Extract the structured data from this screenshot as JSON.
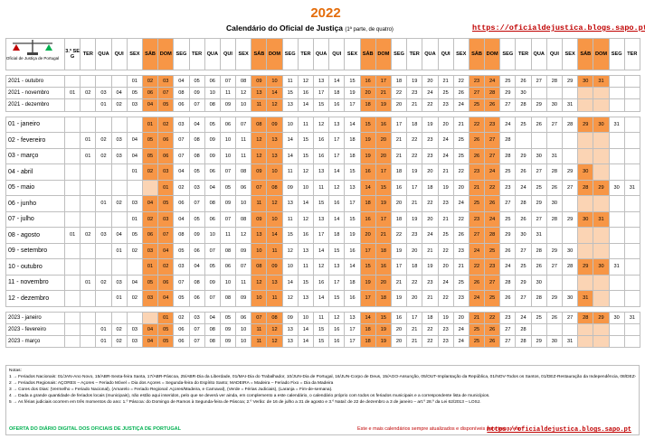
{
  "header": {
    "year": "2022",
    "subtitle": "Calendário do Oficial de Justiça",
    "subtitle_small": "(1ª parte, de quatro)",
    "url": "https://oficialdejustica.blogs.sapo.pt"
  },
  "logo": {
    "label": "Oficial de Justiça de Portugal"
  },
  "weekday_headers": [
    "3.ª SEG",
    "TER",
    "QUA",
    "QUI",
    "SEX",
    "SÁB",
    "DOM",
    "SEG",
    "TER",
    "QUA",
    "QUI",
    "SEX",
    "SÁB",
    "DOM",
    "SEG",
    "TER",
    "QUA",
    "QUI",
    "SEX",
    "SÁB",
    "DOM",
    "SEG",
    "TER",
    "QUA",
    "QUI",
    "SEX",
    "SÁB",
    "DOM",
    "SEG",
    "TER",
    "QUA",
    "QUI",
    "SEX",
    "SÁB",
    "DOM",
    "SEG",
    "TER"
  ],
  "months": [
    {
      "label": "2021 - outubro",
      "start": 4,
      "days": 31,
      "big": false
    },
    {
      "label": "2021 - novembro",
      "start": 0,
      "days": 30,
      "big": false
    },
    {
      "label": "2021 - dezembro",
      "start": 2,
      "days": 31,
      "big": false
    },
    {
      "label": "01 - janeiro",
      "start": 5,
      "days": 31,
      "big": true
    },
    {
      "label": "02 - fevereiro",
      "start": 1,
      "days": 28,
      "big": true
    },
    {
      "label": "03 - março",
      "start": 1,
      "days": 31,
      "big": true
    },
    {
      "label": "04 - abril",
      "start": 4,
      "days": 30,
      "big": true
    },
    {
      "label": "05 - maio",
      "start": 6,
      "days": 31,
      "big": true
    },
    {
      "label": "06 - junho",
      "start": 2,
      "days": 30,
      "big": true
    },
    {
      "label": "07 - julho",
      "start": 4,
      "days": 31,
      "big": true
    },
    {
      "label": "08 - agosto",
      "start": 0,
      "days": 31,
      "big": true
    },
    {
      "label": "09 - setembro",
      "start": 3,
      "days": 30,
      "big": true
    },
    {
      "label": "10 - outubro",
      "start": 5,
      "days": 31,
      "big": true
    },
    {
      "label": "11 - novembro",
      "start": 1,
      "days": 30,
      "big": true
    },
    {
      "label": "12 - dezembro",
      "start": 3,
      "days": 31,
      "big": true
    },
    {
      "label": "2023 - janeiro",
      "start": 6,
      "days": 31,
      "big": false
    },
    {
      "label": "2023 - fevereiro",
      "start": 2,
      "days": 28,
      "big": false
    },
    {
      "label": "2023 - março",
      "start": 2,
      "days": 31,
      "big": false
    }
  ],
  "notes": {
    "title": "Notas:",
    "line1": "1 → Feriados Nacionais: 01/JAN-Ano Novo, 15/ABR-Sexta-feira Santa, 17/ABR-Páscoa, 25/ABR-Dia da Liberdade, 01/MAI-Dia do Trabalhador, 10/JUN-Dia de Portugal, 16/JUN-Corpo de Deus, 15/AGO-Assunção, 05/OUT-Implantação da República, 01/NOV-Todos os Santos, 01/DEZ-Restauração da Independência, 08/DEZ-Imaculada Conceição, 25/DEZ-Natal.",
    "line2": "2 → Feriados Regionais: AÇORES – Açores – Feriado Móvel = Dia dos Açores = Segunda-feira do Espírito Santo; MADEIRA = Madeira – Feriado Fixo = Dia da Madeira",
    "line3": "3 → Cores dos Dias: (Vermelho = Feriado Nacional), (Amarelo = Feriado Regional: Açores/Madeira, e Carnaval), (Verde = Férias Judiciais), (Laranja = Fim-de-semana).",
    "line4": "4 → Dada a grande quantidade de feriados locais (municipais), não estão aqui inseridos, pelo que se deverá ver ainda, em complemento a este calendário, o calendário próprio com todos os feriados municipais e a correspondente lista de municípios.",
    "line5": "5 → As férias judiciais ocorrem em três momentos do ano: 1.º Páscoa: do Domingo de Ramos à Segunda-feira de Páscoa; 2.º Verão: de 16 de julho a 31 de agosto e 3.º Natal: de 22 de dezembro a 3 de janeiro – art.º 28.º da Lei 62/2013 – LOSJ.",
    "footer_left": "OFERTA DO DIÁRIO DIGITAL DOS OFICIAIS DE JUSTIÇA DE PORTUGAL",
    "footer_right": "Este e mais calendários sempre atualizados e disponíveis para baixar em:",
    "footer_url": "https://oficialdejustica.blogs.sapo.pt"
  },
  "colors": {
    "holiday": "#ff0000",
    "regional": "#ffff00",
    "judicial_vacation": "#00b050",
    "weekend": "#f79646",
    "title": "#e46c0a"
  }
}
